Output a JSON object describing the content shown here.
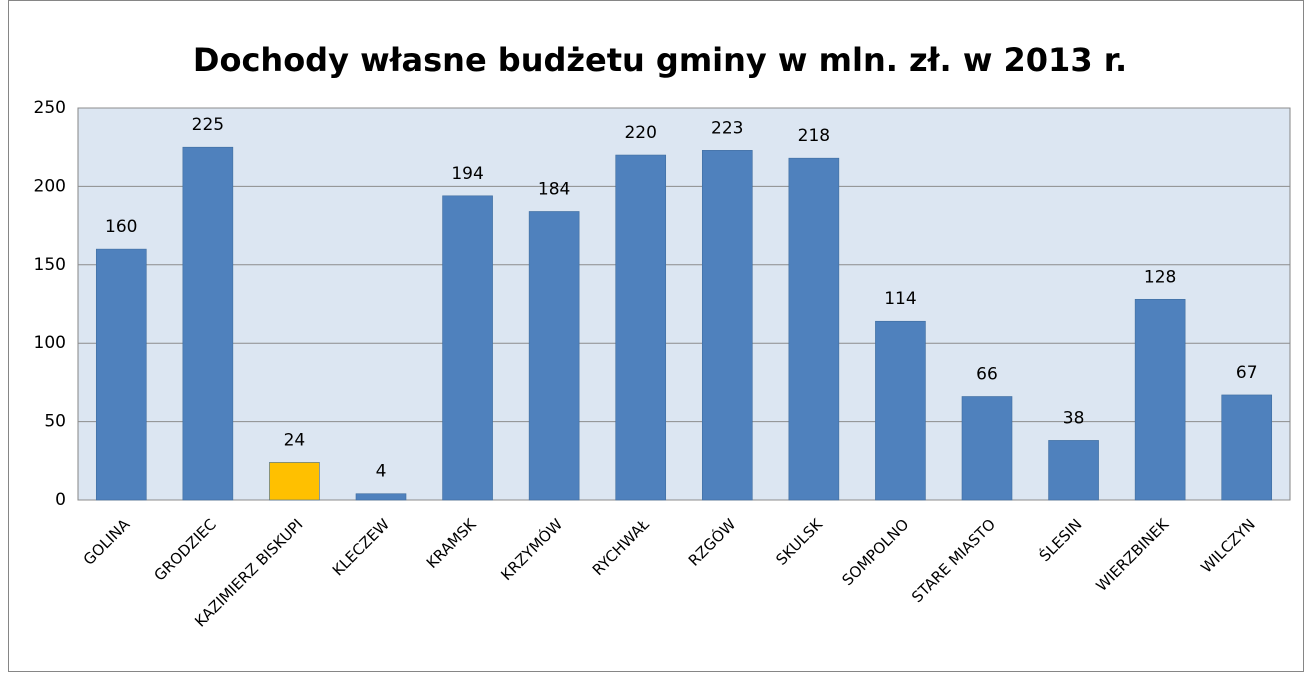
{
  "chart_data": {
    "type": "bar",
    "title": "Dochody własne budżetu gminy w mln. zł. w 2013 r.",
    "categories": [
      "GOLINA",
      "GRODZIEC",
      "KAZIMIERZ BISKUPI",
      "KLECZEW",
      "KRAMSK",
      "KRZYMÓW",
      "RYCHWAŁ",
      "RZGÓW",
      "SKULSK",
      "SOMPOLNO",
      "STARE MIASTO",
      "ŚLESIN",
      "WIERZBINEK",
      "WILCZYN"
    ],
    "values": [
      160,
      225,
      24,
      4,
      194,
      184,
      220,
      223,
      218,
      114,
      66,
      38,
      128,
      67
    ],
    "colors": [
      "#4f81bd",
      "#4f81bd",
      "#ffc000",
      "#4f81bd",
      "#4f81bd",
      "#4f81bd",
      "#4f81bd",
      "#4f81bd",
      "#4f81bd",
      "#4f81bd",
      "#4f81bd",
      "#4f81bd",
      "#4f81bd",
      "#4f81bd"
    ],
    "ylim": [
      0,
      250
    ],
    "yticks": [
      0,
      50,
      100,
      150,
      200,
      250
    ],
    "grid": true
  }
}
